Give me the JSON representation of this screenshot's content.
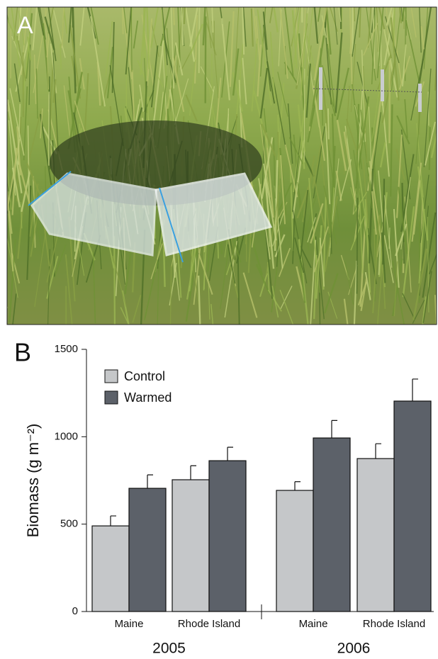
{
  "photo": {
    "label": "A"
  },
  "chart_data": {
    "type": "bar",
    "panel_label": "B",
    "y_label": "Biomass (g m⁻²)",
    "categories": [
      "Maine",
      "Rhode Island",
      "Maine",
      "Rhode Island"
    ],
    "groups": [
      "2005",
      "2006"
    ],
    "series": [
      {
        "name": "Control",
        "color": "#c5c7c9",
        "values": [
          490,
          754,
          693,
          875
        ],
        "errors": [
          57,
          80,
          50,
          85
        ]
      },
      {
        "name": "Warmed",
        "color": "#5c6169",
        "values": [
          705,
          863,
          993,
          1204
        ],
        "errors": [
          77,
          77,
          100,
          126
        ]
      }
    ],
    "ylim": [
      0,
      1500
    ],
    "yticks": [
      0,
      500,
      1000,
      1500
    ],
    "legend": "upper left"
  }
}
